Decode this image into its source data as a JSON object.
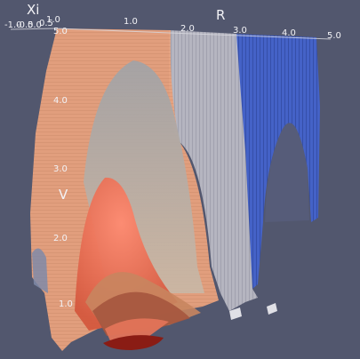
{
  "viewport": {
    "background": "#52576e",
    "label_color": "#f2f2f6"
  },
  "axes": {
    "r": {
      "title": "R",
      "ticks": [
        "1.0",
        "2.0",
        "3.0",
        "4.0",
        "5.0"
      ]
    },
    "xi": {
      "title": "Xi",
      "ticks": [
        "-1.0",
        "-0.5",
        "0.0",
        "0.5",
        "1.0"
      ]
    },
    "v": {
      "title": "V",
      "ticks": [
        "5.0",
        "4.0",
        "3.0",
        "2.0",
        "1.0"
      ]
    }
  },
  "surfaces": [
    {
      "name": "orange-isosurface",
      "color": "#e8a27e"
    },
    {
      "name": "gray-isosurface",
      "color": "#b9b9c3"
    },
    {
      "name": "blue-isosurface",
      "color": "#3d5bc4"
    },
    {
      "name": "red-core-isosurface",
      "color": "#e56e54"
    },
    {
      "name": "dark-red-core",
      "color": "#8a1c14"
    }
  ]
}
